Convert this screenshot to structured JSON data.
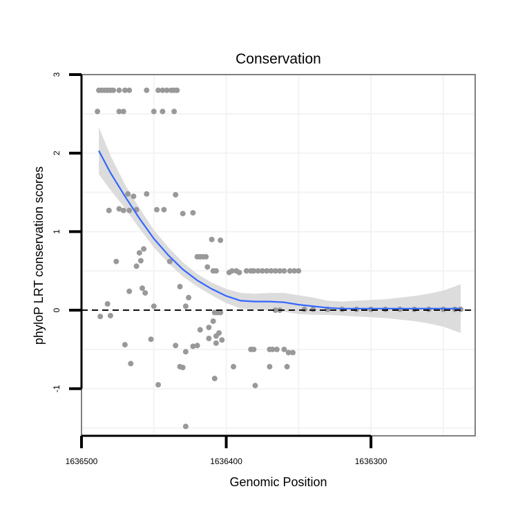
{
  "chart_data": {
    "type": "scatter",
    "title": "Conservation",
    "xlabel": "Genomic Position",
    "ylabel": "phyloP LRT conservation scores",
    "xlim": [
      1636500,
      1636228
    ],
    "ylim": [
      -1.6,
      3.0
    ],
    "x_reversed": true,
    "x_ticks": [
      1636500,
      1636400,
      1636300
    ],
    "x_tick_labels": [
      "1636500",
      "1636400",
      "1636300"
    ],
    "y_ticks": [
      -1,
      0,
      1,
      2,
      3
    ],
    "y_tick_labels": [
      "-1",
      "0",
      "1",
      "2",
      "3"
    ],
    "grid": true,
    "reference_line": {
      "y": 0,
      "style": "dashed"
    },
    "colors": {
      "points": "#999999",
      "smooth": "#3366ff",
      "band": "#d6d6d6",
      "frame": "#7f7f7f",
      "grid": "#f3f3f3"
    },
    "points": [
      {
        "x": 1636488,
        "y": 2.8
      },
      {
        "x": 1636486,
        "y": 2.8
      },
      {
        "x": 1636484,
        "y": 2.8
      },
      {
        "x": 1636482,
        "y": 2.8
      },
      {
        "x": 1636480,
        "y": 2.8
      },
      {
        "x": 1636478,
        "y": 2.8
      },
      {
        "x": 1636474,
        "y": 2.8
      },
      {
        "x": 1636470,
        "y": 2.8
      },
      {
        "x": 1636467,
        "y": 2.8
      },
      {
        "x": 1636455,
        "y": 2.8
      },
      {
        "x": 1636447,
        "y": 2.8
      },
      {
        "x": 1636444,
        "y": 2.8
      },
      {
        "x": 1636441,
        "y": 2.8
      },
      {
        "x": 1636438,
        "y": 2.8
      },
      {
        "x": 1636436,
        "y": 2.8
      },
      {
        "x": 1636434,
        "y": 2.8
      },
      {
        "x": 1636489,
        "y": 2.53
      },
      {
        "x": 1636474,
        "y": 2.53
      },
      {
        "x": 1636471,
        "y": 2.53
      },
      {
        "x": 1636450,
        "y": 2.53
      },
      {
        "x": 1636444,
        "y": 2.53
      },
      {
        "x": 1636436,
        "y": 2.53
      },
      {
        "x": 1636468,
        "y": 1.48
      },
      {
        "x": 1636464,
        "y": 1.45
      },
      {
        "x": 1636455,
        "y": 1.48
      },
      {
        "x": 1636435,
        "y": 1.47
      },
      {
        "x": 1636474,
        "y": 1.29
      },
      {
        "x": 1636471,
        "y": 1.27
      },
      {
        "x": 1636467,
        "y": 1.27
      },
      {
        "x": 1636462,
        "y": 1.28
      },
      {
        "x": 1636448,
        "y": 1.28
      },
      {
        "x": 1636443,
        "y": 1.28
      },
      {
        "x": 1636481,
        "y": 1.27
      },
      {
        "x": 1636430,
        "y": 1.23
      },
      {
        "x": 1636423,
        "y": 1.24
      },
      {
        "x": 1636457,
        "y": 0.78
      },
      {
        "x": 1636460,
        "y": 0.73
      },
      {
        "x": 1636459,
        "y": 0.63
      },
      {
        "x": 1636476,
        "y": 0.62
      },
      {
        "x": 1636462,
        "y": 0.56
      },
      {
        "x": 1636439,
        "y": 0.62
      },
      {
        "x": 1636420,
        "y": 0.68
      },
      {
        "x": 1636418,
        "y": 0.68
      },
      {
        "x": 1636416,
        "y": 0.68
      },
      {
        "x": 1636414,
        "y": 0.68
      },
      {
        "x": 1636410,
        "y": 0.9
      },
      {
        "x": 1636404,
        "y": 0.89
      },
      {
        "x": 1636413,
        "y": 0.55
      },
      {
        "x": 1636409,
        "y": 0.5
      },
      {
        "x": 1636407,
        "y": 0.5
      },
      {
        "x": 1636398,
        "y": 0.48
      },
      {
        "x": 1636396,
        "y": 0.5
      },
      {
        "x": 1636393,
        "y": 0.5
      },
      {
        "x": 1636391,
        "y": 0.48
      },
      {
        "x": 1636386,
        "y": 0.5
      },
      {
        "x": 1636383,
        "y": 0.5
      },
      {
        "x": 1636381,
        "y": 0.5
      },
      {
        "x": 1636378,
        "y": 0.5
      },
      {
        "x": 1636375,
        "y": 0.5
      },
      {
        "x": 1636372,
        "y": 0.5
      },
      {
        "x": 1636369,
        "y": 0.5
      },
      {
        "x": 1636366,
        "y": 0.5
      },
      {
        "x": 1636363,
        "y": 0.5
      },
      {
        "x": 1636360,
        "y": 0.5
      },
      {
        "x": 1636356,
        "y": 0.5
      },
      {
        "x": 1636353,
        "y": 0.5
      },
      {
        "x": 1636350,
        "y": 0.5
      },
      {
        "x": 1636467,
        "y": 0.24
      },
      {
        "x": 1636458,
        "y": 0.28
      },
      {
        "x": 1636456,
        "y": 0.22
      },
      {
        "x": 1636432,
        "y": 0.3
      },
      {
        "x": 1636426,
        "y": 0.16
      },
      {
        "x": 1636450,
        "y": 0.05
      },
      {
        "x": 1636428,
        "y": 0.05
      },
      {
        "x": 1636482,
        "y": 0.08
      },
      {
        "x": 1636487,
        "y": -0.08
      },
      {
        "x": 1636480,
        "y": -0.07
      },
      {
        "x": 1636408,
        "y": -0.03
      },
      {
        "x": 1636406,
        "y": -0.03
      },
      {
        "x": 1636404,
        "y": -0.03
      },
      {
        "x": 1636366,
        "y": 0.0
      },
      {
        "x": 1636363,
        "y": 0.0
      },
      {
        "x": 1636418,
        "y": -0.25
      },
      {
        "x": 1636412,
        "y": -0.22
      },
      {
        "x": 1636409,
        "y": -0.14
      },
      {
        "x": 1636405,
        "y": -0.29
      },
      {
        "x": 1636420,
        "y": -0.45
      },
      {
        "x": 1636423,
        "y": -0.46
      },
      {
        "x": 1636412,
        "y": -0.36
      },
      {
        "x": 1636407,
        "y": -0.33
      },
      {
        "x": 1636403,
        "y": -0.38
      },
      {
        "x": 1636407,
        "y": -0.42
      },
      {
        "x": 1636470,
        "y": -0.44
      },
      {
        "x": 1636452,
        "y": -0.37
      },
      {
        "x": 1636435,
        "y": -0.45
      },
      {
        "x": 1636466,
        "y": -0.68
      },
      {
        "x": 1636428,
        "y": -0.53
      },
      {
        "x": 1636430,
        "y": -0.73
      },
      {
        "x": 1636432,
        "y": -0.72
      },
      {
        "x": 1636447,
        "y": -0.95
      },
      {
        "x": 1636408,
        "y": -0.87
      },
      {
        "x": 1636395,
        "y": -0.72
      },
      {
        "x": 1636383,
        "y": -0.5
      },
      {
        "x": 1636381,
        "y": -0.5
      },
      {
        "x": 1636370,
        "y": -0.5
      },
      {
        "x": 1636368,
        "y": -0.5
      },
      {
        "x": 1636365,
        "y": -0.5
      },
      {
        "x": 1636360,
        "y": -0.5
      },
      {
        "x": 1636357,
        "y": -0.54
      },
      {
        "x": 1636354,
        "y": -0.54
      },
      {
        "x": 1636370,
        "y": -0.72
      },
      {
        "x": 1636358,
        "y": -0.72
      },
      {
        "x": 1636380,
        "y": -0.96
      },
      {
        "x": 1636428,
        "y": -1.48
      },
      {
        "x": 1636346,
        "y": 0.01
      },
      {
        "x": 1636340,
        "y": 0.01
      },
      {
        "x": 1636330,
        "y": 0.01
      },
      {
        "x": 1636320,
        "y": 0.01
      },
      {
        "x": 1636310,
        "y": 0.01
      },
      {
        "x": 1636300,
        "y": 0.01
      },
      {
        "x": 1636290,
        "y": 0.01
      },
      {
        "x": 1636280,
        "y": 0.01
      },
      {
        "x": 1636270,
        "y": 0.01
      },
      {
        "x": 1636260,
        "y": 0.01
      },
      {
        "x": 1636250,
        "y": 0.01
      },
      {
        "x": 1636242,
        "y": 0.01
      },
      {
        "x": 1636238,
        "y": 0.01
      }
    ],
    "smooth": {
      "x": [
        1636488,
        1636480,
        1636470,
        1636460,
        1636450,
        1636440,
        1636430,
        1636420,
        1636410,
        1636400,
        1636390,
        1636380,
        1636370,
        1636360,
        1636350,
        1636340,
        1636330,
        1636320,
        1636310,
        1636300,
        1636290,
        1636280,
        1636270,
        1636260,
        1636250,
        1636238
      ],
      "y": [
        2.03,
        1.75,
        1.45,
        1.17,
        0.91,
        0.7,
        0.52,
        0.38,
        0.27,
        0.18,
        0.12,
        0.11,
        0.11,
        0.1,
        0.07,
        0.05,
        0.03,
        0.02,
        0.02,
        0.02,
        0.02,
        0.02,
        0.02,
        0.02,
        0.02,
        0.02
      ],
      "lower": [
        1.73,
        1.53,
        1.3,
        1.04,
        0.8,
        0.6,
        0.43,
        0.3,
        0.19,
        0.09,
        0.02,
        0.01,
        0.0,
        -0.02,
        -0.05,
        -0.06,
        -0.06,
        -0.07,
        -0.08,
        -0.09,
        -0.1,
        -0.12,
        -0.14,
        -0.17,
        -0.21,
        -0.29
      ],
      "upper": [
        2.33,
        1.97,
        1.6,
        1.3,
        1.02,
        0.8,
        0.61,
        0.46,
        0.35,
        0.27,
        0.22,
        0.21,
        0.22,
        0.22,
        0.19,
        0.16,
        0.12,
        0.11,
        0.12,
        0.13,
        0.14,
        0.16,
        0.18,
        0.21,
        0.25,
        0.33
      ]
    }
  }
}
